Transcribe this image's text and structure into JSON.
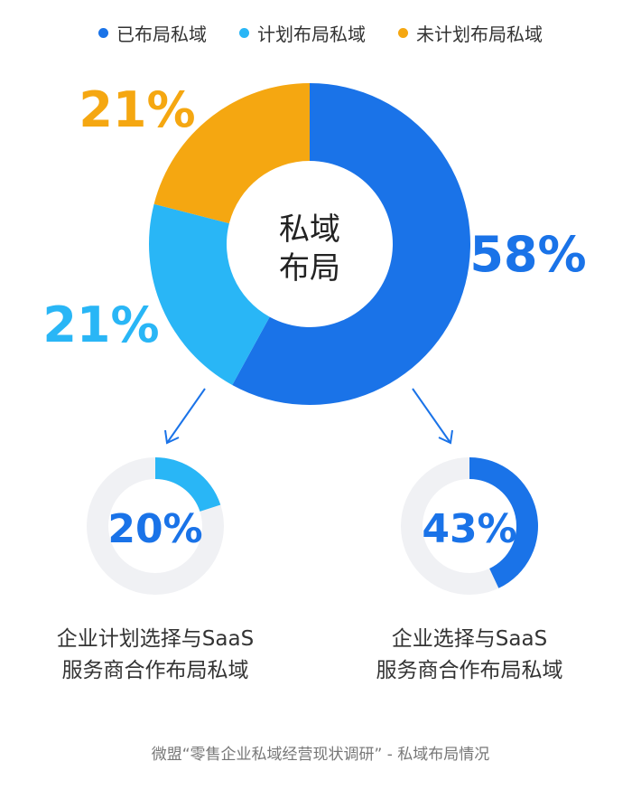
{
  "chart_data": [
    {
      "type": "pie",
      "style": "donut",
      "center_label": [
        "私域",
        "布局"
      ],
      "categories": [
        "已布局私域",
        "计划布局私域",
        "未计划布局私域"
      ],
      "values": [
        58,
        21,
        21
      ],
      "value_labels": [
        "58%",
        "21%",
        "21%"
      ],
      "colors": [
        "#1a73e8",
        "#29b6f6",
        "#f5a711"
      ],
      "legend_position": "top"
    },
    {
      "type": "pie",
      "style": "donut",
      "value": 20,
      "value_label": "20%",
      "color": "#29b6f6",
      "track_color": "#f0f1f4",
      "caption": [
        "企业计划选择与SaaS",
        "服务商合作布局私域"
      ]
    },
    {
      "type": "pie",
      "style": "donut",
      "value": 43,
      "value_label": "43%",
      "color": "#1a73e8",
      "track_color": "#f0f1f4",
      "caption": [
        "企业选择与SaaS",
        "服务商合作布局私域"
      ]
    }
  ],
  "source": "微盟“零售企业私域经营现状调研” - 私域布局情况"
}
